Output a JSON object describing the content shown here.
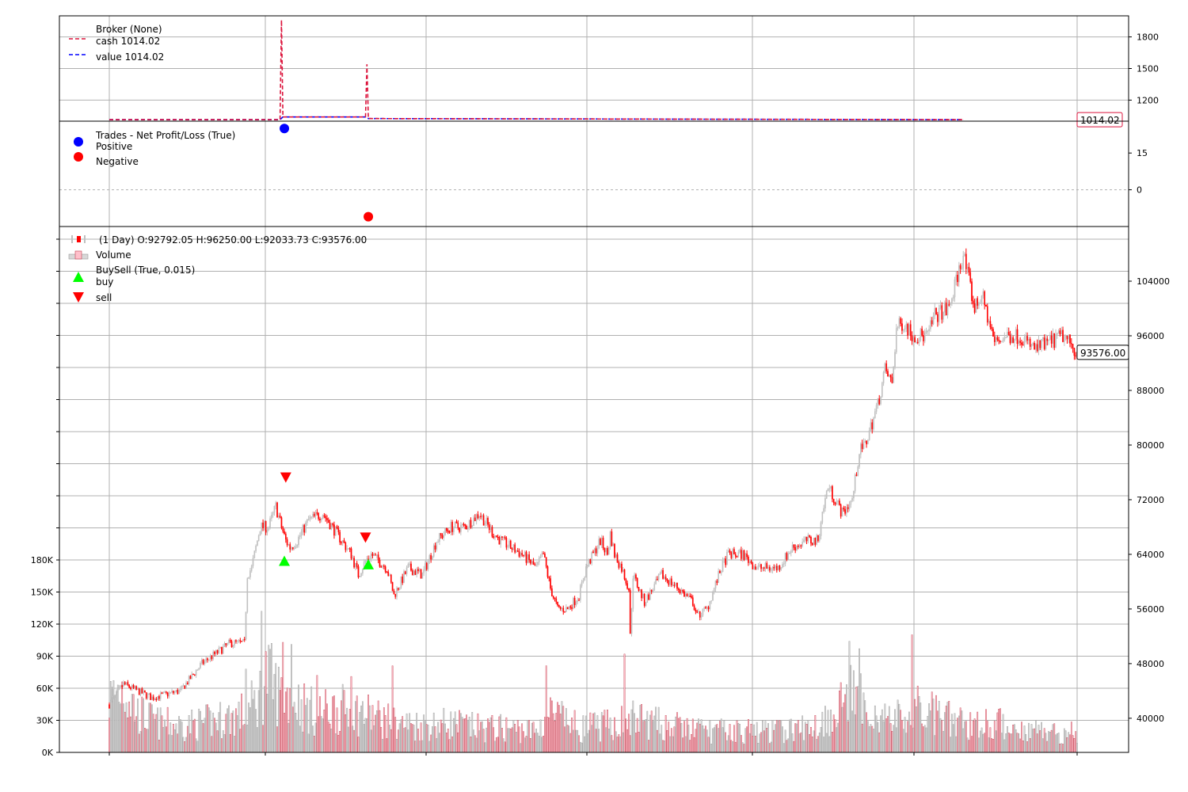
{
  "chart_data": [
    {
      "type": "line",
      "panel": "broker",
      "legend": {
        "title": "Broker (None)",
        "entries": [
          {
            "label": "cash 1014.02",
            "color": "#dc143c",
            "style": "dashed"
          },
          {
            "label": "value 1014.02",
            "color": "#0000ff",
            "style": "dashed"
          }
        ],
        "placement": "top-left"
      },
      "y_ticks": [
        "1200",
        "1500",
        "1800"
      ],
      "y_tick_values": [
        1200,
        1500,
        1800
      ],
      "ylim": [
        1000,
        2000
      ],
      "last_value_label": "1014.02",
      "series": [
        {
          "name": "cash",
          "color": "#dc143c",
          "points": [
            [
              0,
              1014
            ],
            [
              120,
              1014
            ],
            [
              121,
              1960
            ],
            [
              122,
              1040
            ],
            [
              180,
              1040
            ],
            [
              181,
              1540
            ],
            [
              182,
              1025
            ],
            [
              600,
              1014
            ]
          ]
        },
        {
          "name": "value",
          "color": "#0000ff",
          "points": [
            [
              0,
              1014
            ],
            [
              120,
              1014
            ],
            [
              122,
              1040
            ],
            [
              180,
              1040
            ],
            [
              182,
              1025
            ],
            [
              600,
              1014
            ]
          ]
        }
      ]
    },
    {
      "type": "scatter",
      "panel": "trades",
      "legend": {
        "title": "Trades - Net Profit/Loss (True)",
        "entries": [
          {
            "label": "Positive",
            "color": "#0000ff"
          },
          {
            "label": "Negative",
            "color": "#ff0000"
          }
        ],
        "placement": "top-left"
      },
      "y_ticks": [
        "0",
        "15"
      ],
      "y_tick_values": [
        0,
        15
      ],
      "ylim": [
        -15,
        28
      ],
      "points": [
        {
          "x": 123,
          "y": 25,
          "sign": "positive"
        },
        {
          "x": 182,
          "y": -11,
          "sign": "negative"
        }
      ]
    },
    {
      "type": "candlestick",
      "panel": "price",
      "legend": {
        "entries": [
          {
            "label": "(1 Day) O:92792.05 H:96250.00 L:92033.73 C:93576.00",
            "color": "#ff0000"
          },
          {
            "label": "Volume",
            "color": "#ffb6c1"
          },
          {
            "label": "BuySell (True, 0.015)",
            "color": ""
          },
          {
            "label": "buy",
            "color": "#00ff00"
          },
          {
            "label": "sell",
            "color": "#ff0000"
          }
        ],
        "placement": "top-left"
      },
      "price_ticks": [
        "40000",
        "48000",
        "56000",
        "64000",
        "72000",
        "80000",
        "88000",
        "96000",
        "104000"
      ],
      "price_tick_values": [
        40000,
        48000,
        56000,
        64000,
        72000,
        80000,
        88000,
        96000,
        104000
      ],
      "price_range": [
        35000,
        112000
      ],
      "volume_ticks": [
        "0K",
        "30K",
        "60K",
        "90K",
        "120K",
        "150K",
        "180K"
      ],
      "volume_tick_values": [
        0,
        30000,
        60000,
        90000,
        120000,
        150000,
        180000
      ],
      "volume_range": [
        0,
        180000
      ],
      "last_value_label": "93576.00",
      "bars": 600,
      "up_color": "#c0c0c0",
      "down_color": "#ff0000",
      "path": [
        [
          0,
          42000
        ],
        [
          10,
          45000
        ],
        [
          30,
          43000
        ],
        [
          50,
          44000
        ],
        [
          65,
          48000
        ],
        [
          85,
          51000
        ],
        [
          95,
          51000
        ],
        [
          97,
          61000
        ],
        [
          100,
          62000
        ],
        [
          106,
          68000
        ],
        [
          112,
          68000
        ],
        [
          117,
          71000
        ],
        [
          121,
          68000
        ],
        [
          124,
          66000
        ],
        [
          127,
          65000
        ],
        [
          132,
          66000
        ],
        [
          140,
          69000
        ],
        [
          150,
          70000
        ],
        [
          160,
          67000
        ],
        [
          170,
          64000
        ],
        [
          175,
          61000
        ],
        [
          180,
          63000
        ],
        [
          184,
          64000
        ],
        [
          195,
          62000
        ],
        [
          200,
          58000
        ],
        [
          210,
          62000
        ],
        [
          220,
          61000
        ],
        [
          230,
          66000
        ],
        [
          240,
          68000
        ],
        [
          250,
          68000
        ],
        [
          260,
          70000
        ],
        [
          270,
          67000
        ],
        [
          275,
          66000
        ],
        [
          290,
          64000
        ],
        [
          300,
          62000
        ],
        [
          305,
          64000
        ],
        [
          310,
          59000
        ],
        [
          315,
          56000
        ],
        [
          322,
          56000
        ],
        [
          330,
          58000
        ],
        [
          335,
          62000
        ],
        [
          345,
          66000
        ],
        [
          350,
          64000
        ],
        [
          352,
          67000
        ],
        [
          355,
          64000
        ],
        [
          360,
          62000
        ],
        [
          365,
          59000
        ],
        [
          366,
          52000
        ],
        [
          368,
          61000
        ],
        [
          376,
          57000
        ],
        [
          388,
          61000
        ],
        [
          400,
          59000
        ],
        [
          410,
          57000
        ],
        [
          413,
          55000
        ],
        [
          420,
          56000
        ],
        [
          430,
          62000
        ],
        [
          435,
          64000
        ],
        [
          445,
          64000
        ],
        [
          455,
          62000
        ],
        [
          470,
          62000
        ],
        [
          480,
          65000
        ],
        [
          490,
          66000
        ],
        [
          498,
          66000
        ],
        [
          500,
          69000
        ],
        [
          505,
          74000
        ],
        [
          515,
          70000
        ],
        [
          522,
          72000
        ],
        [
          527,
          79000
        ],
        [
          531,
          80000
        ],
        [
          540,
          86000
        ],
        [
          545,
          91000
        ],
        [
          550,
          89000
        ],
        [
          553,
          97000
        ],
        [
          558,
          98000
        ],
        [
          565,
          96000
        ],
        [
          575,
          96000
        ],
        [
          580,
          99000
        ],
        [
          590,
          100000
        ],
        [
          600,
          108000
        ],
        [
          608,
          100000
        ],
        [
          613,
          102000
        ],
        [
          622,
          95000
        ],
        [
          630,
          96000
        ],
        [
          640,
          96000
        ],
        [
          650,
          94000
        ],
        [
          660,
          95000
        ],
        [
          670,
          96000
        ],
        [
          680,
          93576
        ]
      ],
      "volume_base": [
        [
          0,
          55000
        ],
        [
          10,
          70000
        ],
        [
          20,
          40000
        ],
        [
          35,
          30000
        ],
        [
          50,
          28000
        ],
        [
          65,
          30000
        ],
        [
          80,
          35000
        ],
        [
          95,
          40000
        ],
        [
          105,
          55000
        ],
        [
          110,
          80000
        ],
        [
          120,
          60000
        ],
        [
          130,
          55000
        ],
        [
          145,
          40000
        ],
        [
          160,
          45000
        ],
        [
          180,
          40000
        ],
        [
          200,
          30000
        ],
        [
          220,
          28000
        ],
        [
          240,
          30000
        ],
        [
          260,
          25000
        ],
        [
          280,
          25000
        ],
        [
          300,
          22000
        ],
        [
          310,
          40000
        ],
        [
          330,
          25000
        ],
        [
          350,
          28000
        ],
        [
          370,
          35000
        ],
        [
          390,
          28000
        ],
        [
          410,
          24000
        ],
        [
          430,
          22000
        ],
        [
          450,
          22000
        ],
        [
          470,
          22000
        ],
        [
          490,
          25000
        ],
        [
          500,
          30000
        ],
        [
          520,
          60000
        ],
        [
          530,
          50000
        ],
        [
          545,
          35000
        ],
        [
          560,
          35000
        ],
        [
          570,
          45000
        ],
        [
          585,
          35000
        ],
        [
          600,
          30000
        ],
        [
          620,
          30000
        ],
        [
          640,
          25000
        ],
        [
          660,
          22000
        ],
        [
          680,
          20000
        ]
      ],
      "volume_spikes": [
        {
          "x": 107,
          "v": 132000
        },
        {
          "x": 122,
          "v": 103000
        },
        {
          "x": 128,
          "v": 101000
        },
        {
          "x": 199,
          "v": 81000
        },
        {
          "x": 307,
          "v": 81000
        },
        {
          "x": 362,
          "v": 92000
        },
        {
          "x": 520,
          "v": 104000
        },
        {
          "x": 527,
          "v": 97000
        },
        {
          "x": 564,
          "v": 110000
        },
        {
          "x": 146,
          "v": 72000
        },
        {
          "x": 170,
          "v": 71000
        },
        {
          "x": 96,
          "v": 78000
        }
      ],
      "markers": [
        {
          "type": "buy",
          "x": 123,
          "price": 63000
        },
        {
          "type": "sell",
          "x": 124,
          "price": 75300
        },
        {
          "type": "buy",
          "x": 182,
          "price": 62500
        },
        {
          "type": "sell",
          "x": 180,
          "price": 66500
        }
      ]
    }
  ]
}
